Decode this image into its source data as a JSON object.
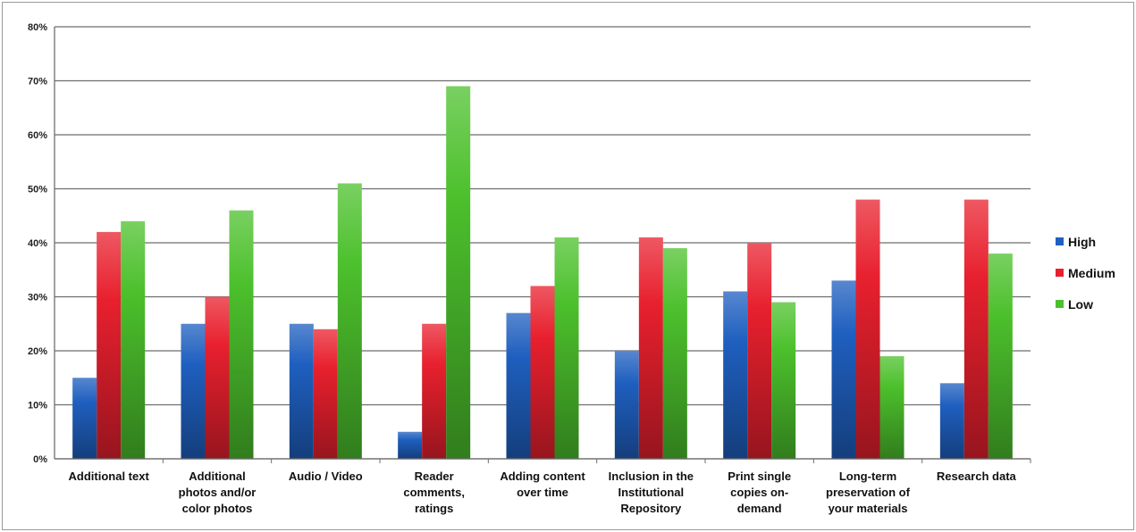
{
  "chart_data": {
    "type": "bar",
    "categories": [
      "Additional text",
      "Additional photos and/or color photos",
      "Audio / Video",
      "Reader comments, ratings",
      "Adding content over time",
      "Inclusion in the Institutional Repository",
      "Print single copies on-demand",
      "Long-term preservation of your materials",
      "Research data"
    ],
    "category_lines": [
      [
        "Additional text"
      ],
      [
        "Additional",
        "photos and/or",
        "color photos"
      ],
      [
        "Audio / Video"
      ],
      [
        "Reader",
        "comments,",
        "ratings"
      ],
      [
        "Adding content",
        "over time"
      ],
      [
        "Inclusion in the",
        "Institutional",
        "Repository"
      ],
      [
        "Print single",
        "copies on-",
        "demand"
      ],
      [
        "Long-term",
        "preservation of",
        "your materials"
      ],
      [
        "Research data"
      ]
    ],
    "series": [
      {
        "name": "High",
        "color": "#1f5fbf",
        "values": [
          15,
          25,
          25,
          5,
          27,
          20,
          31,
          33,
          14
        ]
      },
      {
        "name": "Medium",
        "color": "#e8202e",
        "values": [
          42,
          30,
          24,
          25,
          32,
          41,
          40,
          48,
          48
        ]
      },
      {
        "name": "Low",
        "color": "#4cc02c",
        "values": [
          44,
          46,
          51,
          69,
          41,
          39,
          29,
          19,
          38
        ]
      }
    ],
    "ylim": [
      0,
      80
    ],
    "yticks": [
      "0%",
      "10%",
      "20%",
      "30%",
      "40%",
      "50%",
      "60%",
      "70%",
      "80%"
    ],
    "title": "",
    "xlabel": "",
    "ylabel": "",
    "grid": true,
    "legend": "right"
  }
}
